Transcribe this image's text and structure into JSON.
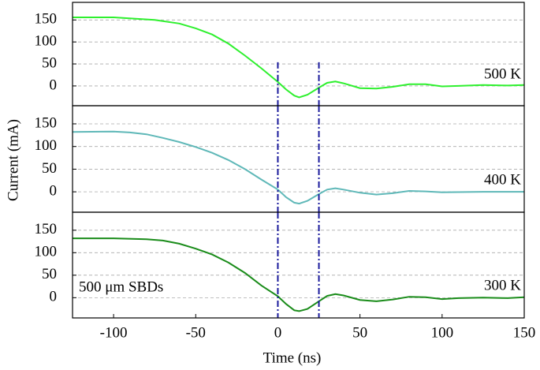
{
  "chart_data": [
    {
      "type": "line",
      "label": "500 K",
      "xlim": [
        -125,
        150
      ],
      "ylim": [
        -45,
        190
      ],
      "yticks": [
        0,
        50,
        100,
        150
      ],
      "grid": true,
      "vlines": [
        0,
        25
      ],
      "vline_color": "#1a1a9c",
      "x": [
        -125,
        -100,
        -75,
        -60,
        -50,
        -40,
        -30,
        -20,
        -10,
        0,
        5,
        10,
        13,
        18,
        25,
        30,
        35,
        40,
        50,
        60,
        70,
        80,
        90,
        100,
        110,
        125,
        140,
        150
      ],
      "series": [
        {
          "color": "#2ef02e",
          "values": [
            156,
            156,
            150,
            142,
            131,
            117,
            96,
            69,
            40,
            9,
            -8,
            -22,
            -26,
            -20,
            -4,
            7,
            10,
            6,
            -5,
            -6,
            -2,
            4,
            4,
            -1,
            0,
            2,
            1,
            2
          ]
        }
      ]
    },
    {
      "type": "line",
      "label": "400 K",
      "ylabel": "Current (mA)",
      "xlim": [
        -125,
        150
      ],
      "ylim": [
        -45,
        190
      ],
      "yticks": [
        0,
        50,
        100,
        150
      ],
      "grid": true,
      "vlines": [
        0,
        25
      ],
      "vline_color": "#1a1a9c",
      "x": [
        -125,
        -100,
        -90,
        -80,
        -70,
        -60,
        -50,
        -40,
        -30,
        -20,
        -10,
        0,
        5,
        10,
        13,
        18,
        25,
        30,
        35,
        40,
        50,
        60,
        70,
        80,
        90,
        100,
        125,
        150
      ],
      "series": [
        {
          "color": "#5fb8b8",
          "values": [
            132,
            133,
            131,
            127,
            119,
            110,
            99,
            86,
            70,
            50,
            27,
            5,
            -12,
            -24,
            -26,
            -20,
            -5,
            5,
            8,
            5,
            -2,
            -6,
            -3,
            2,
            1,
            -1,
            0,
            0
          ]
        }
      ]
    },
    {
      "type": "line",
      "label": "300 K",
      "annotation": "500 μm SBDs",
      "xlabel": "Time (ns)",
      "xlim": [
        -125,
        150
      ],
      "ylim": [
        -45,
        190
      ],
      "xticks": [
        -100,
        -50,
        0,
        50,
        100,
        150
      ],
      "yticks": [
        0,
        50,
        100,
        150
      ],
      "grid": true,
      "vlines": [
        0,
        25
      ],
      "vline_color": "#1a1a9c",
      "x": [
        -125,
        -100,
        -80,
        -70,
        -60,
        -50,
        -40,
        -30,
        -20,
        -10,
        0,
        5,
        10,
        13,
        18,
        25,
        30,
        35,
        40,
        50,
        60,
        70,
        80,
        90,
        100,
        110,
        125,
        140,
        150
      ],
      "series": [
        {
          "color": "#1a8c1a",
          "values": [
            132,
            132,
            130,
            127,
            120,
            109,
            96,
            78,
            55,
            27,
            3,
            -14,
            -28,
            -30,
            -25,
            -8,
            4,
            8,
            5,
            -5,
            -8,
            -4,
            2,
            1,
            -3,
            -1,
            0,
            -1,
            1
          ]
        }
      ]
    }
  ]
}
